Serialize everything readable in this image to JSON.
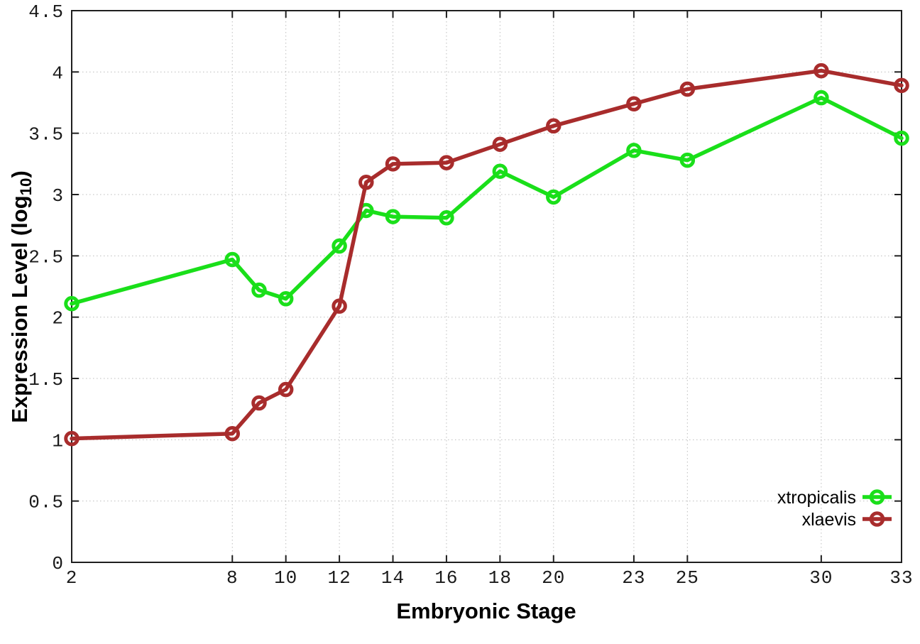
{
  "figure": {
    "xlabel": "Embryonic Stage",
    "ylabel_prefix": "Expression Level (log",
    "ylabel_sub": "10",
    "ylabel_suffix": ")"
  },
  "chart_data": {
    "type": "line",
    "title": "",
    "xlabel": "Embryonic Stage",
    "ylabel": "Expression Level (log10)",
    "xlim": [
      2,
      33
    ],
    "ylim": [
      0,
      4.5
    ],
    "grid": true,
    "grid_style": "dotted",
    "legend_position": "inside-bottom-right",
    "x_ticks": [
      {
        "value": 2,
        "label": "2"
      },
      {
        "value": 8,
        "label": "8"
      },
      {
        "value": 10,
        "label": "10"
      },
      {
        "value": 12,
        "label": "12"
      },
      {
        "value": 14,
        "label": "14"
      },
      {
        "value": 16,
        "label": "16"
      },
      {
        "value": 18,
        "label": "18"
      },
      {
        "value": 20,
        "label": "20"
      },
      {
        "value": 23,
        "label": "23"
      },
      {
        "value": 25,
        "label": "25"
      },
      {
        "value": 30,
        "label": "30"
      },
      {
        "value": 33,
        "label": "33"
      }
    ],
    "y_ticks": [
      {
        "value": 0,
        "label": "0"
      },
      {
        "value": 0.5,
        "label": "0.5"
      },
      {
        "value": 1,
        "label": "1"
      },
      {
        "value": 1.5,
        "label": "1.5"
      },
      {
        "value": 2,
        "label": "2"
      },
      {
        "value": 2.5,
        "label": "2.5"
      },
      {
        "value": 3,
        "label": "3"
      },
      {
        "value": 3.5,
        "label": "3.5"
      },
      {
        "value": 4,
        "label": "4"
      },
      {
        "value": 4.5,
        "label": "4.5"
      }
    ],
    "x": [
      2,
      8,
      9,
      10,
      12,
      13,
      14,
      16,
      18,
      20,
      23,
      25,
      30,
      33
    ],
    "series": [
      {
        "name": "xtropicalis",
        "color": "#1ADF1A",
        "marker": "open-circle",
        "values": [
          2.11,
          2.47,
          2.22,
          2.15,
          2.58,
          2.87,
          2.82,
          2.81,
          3.19,
          2.98,
          3.36,
          3.28,
          3.79,
          3.46
        ]
      },
      {
        "name": "xlaevis",
        "color": "#A82C2C",
        "marker": "open-circle",
        "values": [
          1.01,
          1.05,
          1.3,
          1.41,
          2.09,
          3.1,
          3.25,
          3.26,
          3.41,
          3.56,
          3.74,
          3.86,
          4.01,
          3.89
        ]
      }
    ]
  }
}
